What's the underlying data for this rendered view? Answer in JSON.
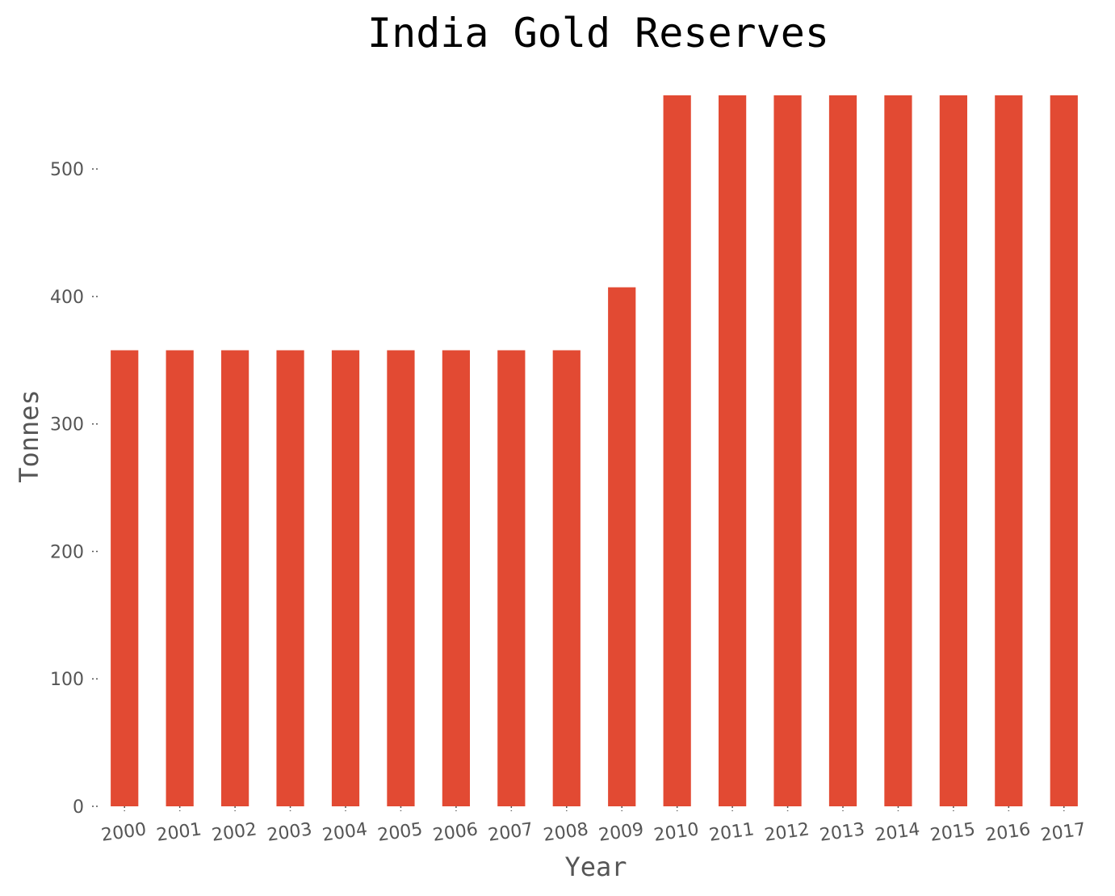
{
  "chart_data": {
    "type": "bar",
    "title": "India Gold Reserves",
    "xlabel": "Year",
    "ylabel": "Tonnes",
    "categories": [
      "2000",
      "2001",
      "2002",
      "2003",
      "2004",
      "2005",
      "2006",
      "2007",
      "2008",
      "2009",
      "2010",
      "2011",
      "2012",
      "2013",
      "2014",
      "2015",
      "2016",
      "2017"
    ],
    "values": [
      357.8,
      357.8,
      357.8,
      357.8,
      357.8,
      357.8,
      357.8,
      357.8,
      357.8,
      407.2,
      557.8,
      557.8,
      557.8,
      557.8,
      557.8,
      557.8,
      557.8,
      557.8
    ],
    "yticks": [
      0,
      100,
      200,
      300,
      400,
      500
    ],
    "ylim": [
      0,
      557.8
    ],
    "grid": false,
    "bar_color": "#e24a33",
    "text_color": "#555555"
  }
}
